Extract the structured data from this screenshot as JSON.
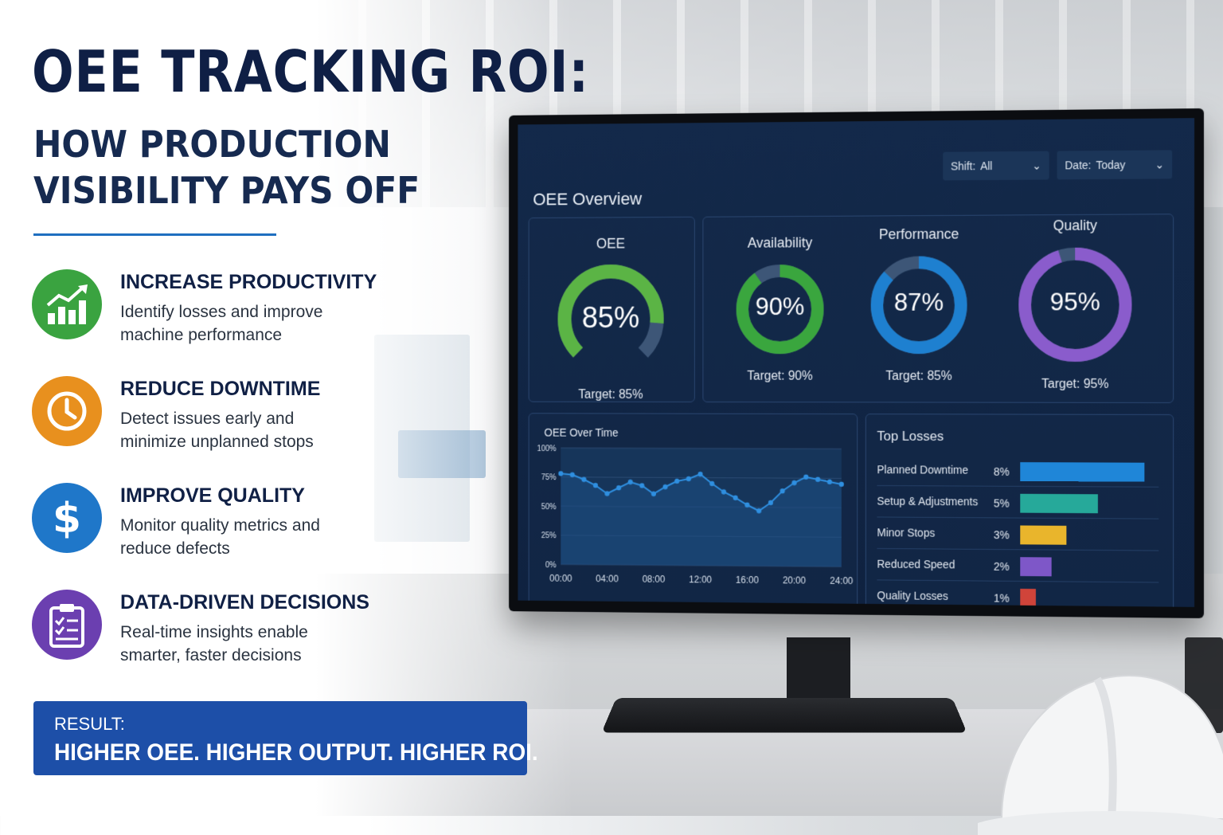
{
  "headline": {
    "title": "OEE TRACKING ROI:",
    "subtitle_line1": "HOW PRODUCTION",
    "subtitle_line2": "VISIBILITY PAYS OFF"
  },
  "benefits": [
    {
      "title": "INCREASE PRODUCTIVITY",
      "line1": "Identify losses and improve",
      "line2": "machine performance",
      "icon": "trending-up-chart-icon",
      "color": "#3aa340"
    },
    {
      "title": "REDUCE DOWNTIME",
      "line1": "Detect issues early and",
      "line2": "minimize unplanned stops",
      "icon": "clock-icon",
      "color": "#e8901e"
    },
    {
      "title": "IMPROVE QUALITY",
      "line1": "Monitor quality metrics and",
      "line2": "reduce defects",
      "icon": "dollar-icon",
      "color": "#1f77c9"
    },
    {
      "title": "DATA-DRIVEN DECISIONS",
      "line1": "Real-time insights enable",
      "line2": "smarter, faster decisions",
      "icon": "clipboard-checklist-icon",
      "color": "#6b3fb0"
    }
  ],
  "result": {
    "label": "RESULT:",
    "text": "HIGHER OEE. HIGHER OUTPUT. HIGHER ROI."
  },
  "dashboard": {
    "shift_filter": {
      "key": "Shift:",
      "value": "All"
    },
    "date_filter": {
      "key": "Date:",
      "value": "Today"
    },
    "overview_title": "OEE Overview",
    "gauges": [
      {
        "label": "OEE",
        "value": "85%",
        "fraction": 0.85,
        "target": "Target: 85%",
        "color": "#5bb445",
        "style": "arc"
      },
      {
        "label": "Availability",
        "value": "90%",
        "fraction": 0.9,
        "target": "Target: 90%",
        "color": "#3aa63e",
        "style": "ring"
      },
      {
        "label": "Performance",
        "value": "87%",
        "fraction": 0.87,
        "target": "Target: 85%",
        "color": "#1e80d0",
        "style": "ring"
      },
      {
        "label": "Quality",
        "value": "95%",
        "fraction": 0.95,
        "target": "Target: 95%",
        "color": "#8a5ccc",
        "style": "ring"
      }
    ],
    "top_losses": {
      "title": "Top Losses",
      "items": [
        {
          "name": "Planned Downtime",
          "pct": "8%",
          "value": 8,
          "color": "#1f86d8"
        },
        {
          "name": "Setup & Adjustments",
          "pct": "5%",
          "value": 5,
          "color": "#26a99a"
        },
        {
          "name": "Minor Stops",
          "pct": "3%",
          "value": 3,
          "color": "#e9b52c"
        },
        {
          "name": "Reduced Speed",
          "pct": "2%",
          "value": 2,
          "color": "#7e57c8"
        },
        {
          "name": "Quality Losses",
          "pct": "1%",
          "value": 1,
          "color": "#d0443a"
        }
      ]
    }
  },
  "chart_data": {
    "type": "line",
    "title": "OEE Over Time",
    "x_tick_labels": [
      "00:00",
      "04:00",
      "08:00",
      "12:00",
      "16:00",
      "20:00",
      "24:00"
    ],
    "y_tick_labels": [
      "100%",
      "75%",
      "50%",
      "25%",
      "0%"
    ],
    "ylim": [
      0,
      100
    ],
    "xlim": [
      0,
      24
    ],
    "grid": true,
    "series": [
      {
        "color": "#2f8fe0",
        "x": [
          0,
          1,
          2,
          3,
          4,
          5,
          6,
          7,
          8,
          9,
          10,
          11,
          12,
          13,
          14,
          15,
          16,
          17,
          18,
          19,
          20,
          21,
          22,
          23,
          24
        ],
        "y": [
          78,
          77,
          73,
          68,
          61,
          66,
          71,
          68,
          61,
          67,
          72,
          74,
          78,
          70,
          63,
          58,
          52,
          47,
          54,
          64,
          71,
          76,
          74,
          72,
          70
        ]
      }
    ]
  }
}
